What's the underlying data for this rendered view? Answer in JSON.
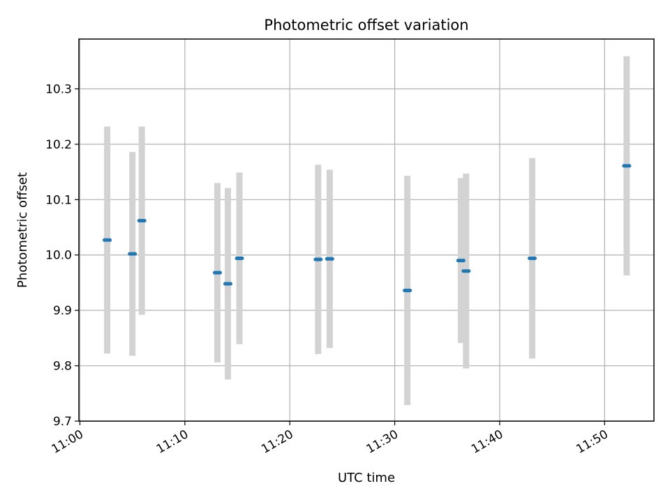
{
  "chart_data": {
    "type": "scatter",
    "title": "Photometric offset variation",
    "xlabel": "UTC time",
    "ylabel": "Photometric offset",
    "x_tick_labels": [
      "11:00",
      "11:10",
      "11:20",
      "11:30",
      "11:40",
      "11:50"
    ],
    "y_tick_labels": [
      "9.7",
      "9.8",
      "9.9",
      "10.0",
      "10.1",
      "10.2",
      "10.3"
    ],
    "x_ticks": [
      "11:00",
      "11:10",
      "11:20",
      "11:30",
      "11:40",
      "11:50"
    ],
    "y_ticks": [
      9.7,
      9.8,
      9.9,
      10.0,
      10.1,
      10.2,
      10.3
    ],
    "xlim": [
      "10:59.9",
      "11:54.7"
    ],
    "ylim": [
      9.7,
      10.39
    ],
    "grid": true,
    "colors": {
      "marker": "#1f77b4",
      "errorbar": "#d3d3d3",
      "grid": "#b0b0b0"
    },
    "series": [
      {
        "points": [
          {
            "x": "11:02.6",
            "y": 10.027,
            "yerr": 0.205
          },
          {
            "x": "11:05.0",
            "y": 10.002,
            "yerr": 0.184
          },
          {
            "x": "11:05.9",
            "y": 10.062,
            "yerr": 0.17
          },
          {
            "x": "11:13.1",
            "y": 9.968,
            "yerr": 0.162
          },
          {
            "x": "11:14.1",
            "y": 9.948,
            "yerr": 0.173
          },
          {
            "x": "11:15.2",
            "y": 9.994,
            "yerr": 0.155
          },
          {
            "x": "11:22.7",
            "y": 9.992,
            "yerr": 0.171
          },
          {
            "x": "11:23.8",
            "y": 9.993,
            "yerr": 0.161
          },
          {
            "x": "11:31.2",
            "y": 9.936,
            "yerr": 0.207
          },
          {
            "x": "11:36.3",
            "y": 9.99,
            "yerr": 0.149
          },
          {
            "x": "11:36.8",
            "y": 9.971,
            "yerr": 0.176
          },
          {
            "x": "11:43.1",
            "y": 9.994,
            "yerr": 0.181
          },
          {
            "x": "11:52.1",
            "y": 10.161,
            "yerr": 0.198
          }
        ]
      }
    ]
  }
}
